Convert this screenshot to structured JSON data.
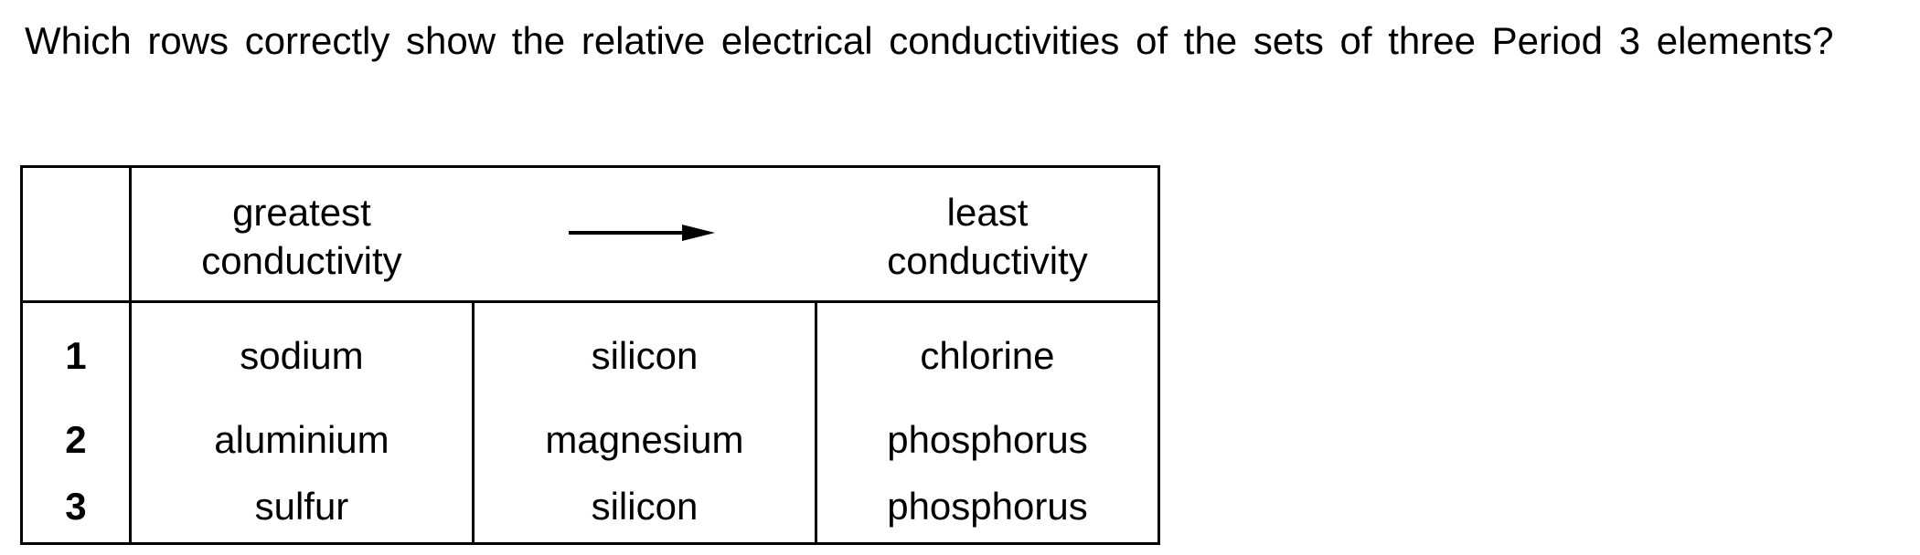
{
  "question": {
    "text": "Which rows correctly show the relative electrical conductivities of the sets of three Period 3 elements?"
  },
  "table": {
    "header": {
      "greatest": "greatest\nconductivity",
      "greatest_line1": "greatest",
      "greatest_line2": "conductivity",
      "arrow_icon": "right-arrow-icon",
      "least_line1": "least",
      "least_line2": "conductivity"
    },
    "rows": [
      {
        "num": "1",
        "a": "sodium",
        "b": "silicon",
        "c": "chlorine"
      },
      {
        "num": "2",
        "a": "aluminium",
        "b": "magnesium",
        "c": "phosphorus"
      },
      {
        "num": "3",
        "a": "sulfur",
        "b": "silicon",
        "c": "phosphorus"
      }
    ]
  }
}
